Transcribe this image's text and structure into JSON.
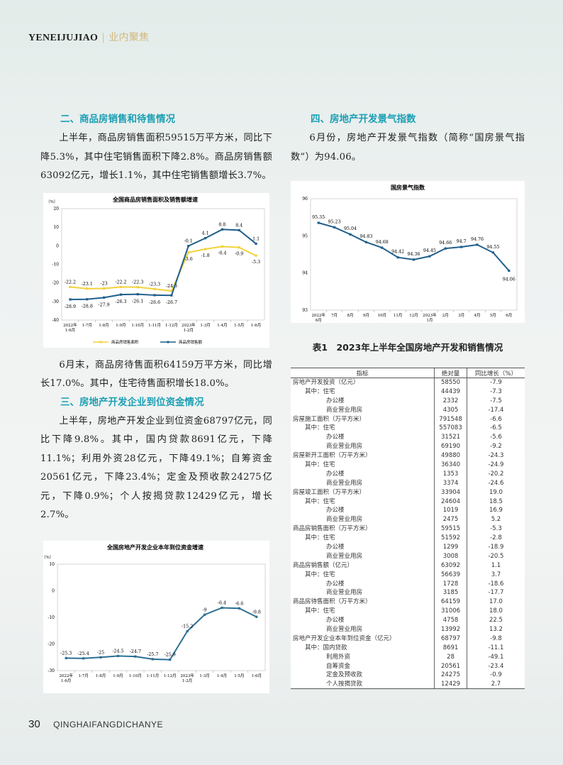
{
  "header": {
    "en": "YENEIJUJIAO",
    "sep": "|",
    "cn": "业内聚焦"
  },
  "footer": {
    "page": "30",
    "magazine": "QINGHAIFANGDICHANYE"
  },
  "left": {
    "h2": "二、商品房销售和待售情况",
    "p1": "上半年，商品房销售面积59515万平方米，同比下降5.3%，其中住宅销售面积下降2.8%。商品房销售额63092亿元，增长1.1%，其中住宅销售额增长3.7%。",
    "p2": "6月末，商品房待售面积64159万平方米，同比增长17.0%。其中，住宅待售面积增长18.0%。",
    "h3": "三、房地产开发企业到位资金情况",
    "p3": "上半年，房地产开发企业到位资金68797亿元，同比下降9.8%。其中，国内贷款8691亿元，下降11.1%；利用外资28亿元，下降49.1%；自筹资金20561亿元，下降23.4%；定金及预收款24275亿元，下降0.9%；个人按揭贷款12429亿元，增长2.7%。"
  },
  "right": {
    "h4": "四、房地产开发景气指数",
    "p4": "6月份，房地产开发景气指数（简称“国房景气指数”）为94.06。",
    "table_caption": "表1　2023年上半年全国房地产开发和销售情况"
  },
  "table": {
    "headers": [
      "指标",
      "绝对量",
      "同比增长（%）"
    ],
    "rows": [
      {
        "level": 0,
        "name": "房地产开发投资（亿元）",
        "value": "58550",
        "growth": "-7.9"
      },
      {
        "level": 1,
        "name": "其中：住宅",
        "value": "44439",
        "growth": "-7.3"
      },
      {
        "level": 2,
        "name": "办公楼",
        "value": "2332",
        "growth": "-7.5"
      },
      {
        "level": 2,
        "name": "商业营业用房",
        "value": "4305",
        "growth": "-17.4"
      },
      {
        "level": 0,
        "name": "房屋施工面积（万平方米）",
        "value": "791548",
        "growth": "-6.6"
      },
      {
        "level": 1,
        "name": "其中：住宅",
        "value": "557083",
        "growth": "-6.5"
      },
      {
        "level": 2,
        "name": "办公楼",
        "value": "31521",
        "growth": "-5.6"
      },
      {
        "level": 2,
        "name": "商业营业用房",
        "value": "69190",
        "growth": "-9.2"
      },
      {
        "level": 0,
        "name": "房屋新开工面积（万平方米）",
        "value": "49880",
        "growth": "-24.3"
      },
      {
        "level": 1,
        "name": "其中：住宅",
        "value": "36340",
        "growth": "-24.9"
      },
      {
        "level": 2,
        "name": "办公楼",
        "value": "1353",
        "growth": "-20.2"
      },
      {
        "level": 2,
        "name": "商业营业用房",
        "value": "3374",
        "growth": "-24.6"
      },
      {
        "level": 0,
        "name": "房屋竣工面积（万平方米）",
        "value": "33904",
        "growth": "19.0"
      },
      {
        "level": 1,
        "name": "其中：住宅",
        "value": "24604",
        "growth": "18.5"
      },
      {
        "level": 2,
        "name": "办公楼",
        "value": "1019",
        "growth": "16.9"
      },
      {
        "level": 2,
        "name": "商业营业用房",
        "value": "2475",
        "growth": "5.2"
      },
      {
        "level": 0,
        "name": "商品房销售面积（万平方米）",
        "value": "59515",
        "growth": "-5.3"
      },
      {
        "level": 1,
        "name": "其中：住宅",
        "value": "51592",
        "growth": "-2.8"
      },
      {
        "level": 2,
        "name": "办公楼",
        "value": "1299",
        "growth": "-18.9"
      },
      {
        "level": 2,
        "name": "商业营业用房",
        "value": "3008",
        "growth": "-20.5"
      },
      {
        "level": 0,
        "name": "商品房销售额（亿元）",
        "value": "63092",
        "growth": "1.1"
      },
      {
        "level": 1,
        "name": "其中：住宅",
        "value": "56639",
        "growth": "3.7"
      },
      {
        "level": 2,
        "name": "办公楼",
        "value": "1728",
        "growth": "-18.6"
      },
      {
        "level": 2,
        "name": "商业营业用房",
        "value": "3185",
        "growth": "-17.7"
      },
      {
        "level": 0,
        "name": "商品房待售面积（万平方米）",
        "value": "64159",
        "growth": "17.0"
      },
      {
        "level": 1,
        "name": "其中：住宅",
        "value": "31006",
        "growth": "18.0"
      },
      {
        "level": 2,
        "name": "办公楼",
        "value": "4758",
        "growth": "22.5"
      },
      {
        "level": 2,
        "name": "商业营业用房",
        "value": "13992",
        "growth": "13.2"
      },
      {
        "level": 0,
        "name": "房地产开发企业本年到位资金（亿元）",
        "value": "68797",
        "growth": "-9.8"
      },
      {
        "level": 1,
        "name": "其中：国内贷款",
        "value": "8691",
        "growth": "-11.1"
      },
      {
        "level": 2,
        "name": "利用外资",
        "value": "28",
        "growth": "-49.1"
      },
      {
        "level": 2,
        "name": "自筹资金",
        "value": "20561",
        "growth": "-23.4"
      },
      {
        "level": 2,
        "name": "定金及预收款",
        "value": "24275",
        "growth": "-0.9"
      },
      {
        "level": 2,
        "name": "个人按揭贷款",
        "value": "12429",
        "growth": "2.7"
      }
    ]
  },
  "chart_data": [
    {
      "id": "sales",
      "type": "line",
      "title": "全国商品房销售面积及销售额增速",
      "ylabel": "（%）",
      "ylim": [
        -40,
        20
      ],
      "yticks": [
        20,
        10,
        0,
        -10,
        -20,
        -30,
        -40
      ],
      "grid": false,
      "legend": "bottom",
      "categories": [
        "2022年1-6月",
        "1-7月",
        "1-8月",
        "1-9月",
        "1-10月",
        "1-11月",
        "1-12月",
        "2023年1-2月",
        "1-3月",
        "1-4月",
        "1-5月",
        "1-6月"
      ],
      "series": [
        {
          "name": "商品房销售面积",
          "color": "#f2d23c",
          "values": [
            -22.2,
            -23.1,
            -23.0,
            -22.2,
            -22.3,
            -23.3,
            -24.3,
            -3.6,
            -1.8,
            -0.4,
            -0.9,
            -5.3
          ]
        },
        {
          "name": "商品房销售额",
          "color": "#1f5f8b",
          "values": [
            -28.9,
            -28.8,
            -27.9,
            -26.3,
            -26.1,
            -26.6,
            -26.7,
            -0.1,
            4.1,
            8.8,
            8.4,
            1.1
          ]
        }
      ]
    },
    {
      "id": "index",
      "type": "line",
      "title": "国房景气指数",
      "ylim": [
        93,
        96
      ],
      "yticks": [
        96,
        95,
        94,
        93
      ],
      "grid": false,
      "legend": "none",
      "categories": [
        "2022年6月",
        "7月",
        "8月",
        "9月",
        "10月",
        "11月",
        "12月",
        "2023年1月",
        "2月",
        "3月",
        "4月",
        "5月",
        "6月"
      ],
      "series": [
        {
          "color": "#1f5f8b",
          "values": [
            95.35,
            95.23,
            95.04,
            94.83,
            94.68,
            94.42,
            94.36,
            94.45,
            94.66,
            94.7,
            94.76,
            94.55,
            94.06
          ]
        }
      ]
    },
    {
      "id": "funds",
      "type": "line",
      "title": "全国房地产开发企业本年到位资金增速",
      "ylabel": "（%）",
      "ylim": [
        -30,
        10
      ],
      "yticks": [
        10,
        0,
        -10,
        -20,
        -30
      ],
      "grid": false,
      "legend": "none",
      "categories": [
        "2022年1-6月",
        "1-7月",
        "1-8月",
        "1-9月",
        "1-10月",
        "1-11月",
        "1-12月",
        "2023年1-2月",
        "1-3月",
        "1-4月",
        "1-5月",
        "1-6月"
      ],
      "series": [
        {
          "color": "#2b6f95",
          "values": [
            -25.3,
            -25.4,
            -25.0,
            -24.5,
            -24.7,
            -25.7,
            -25.9,
            -15.2,
            -9.0,
            -6.4,
            -6.6,
            -9.8
          ]
        }
      ]
    }
  ]
}
